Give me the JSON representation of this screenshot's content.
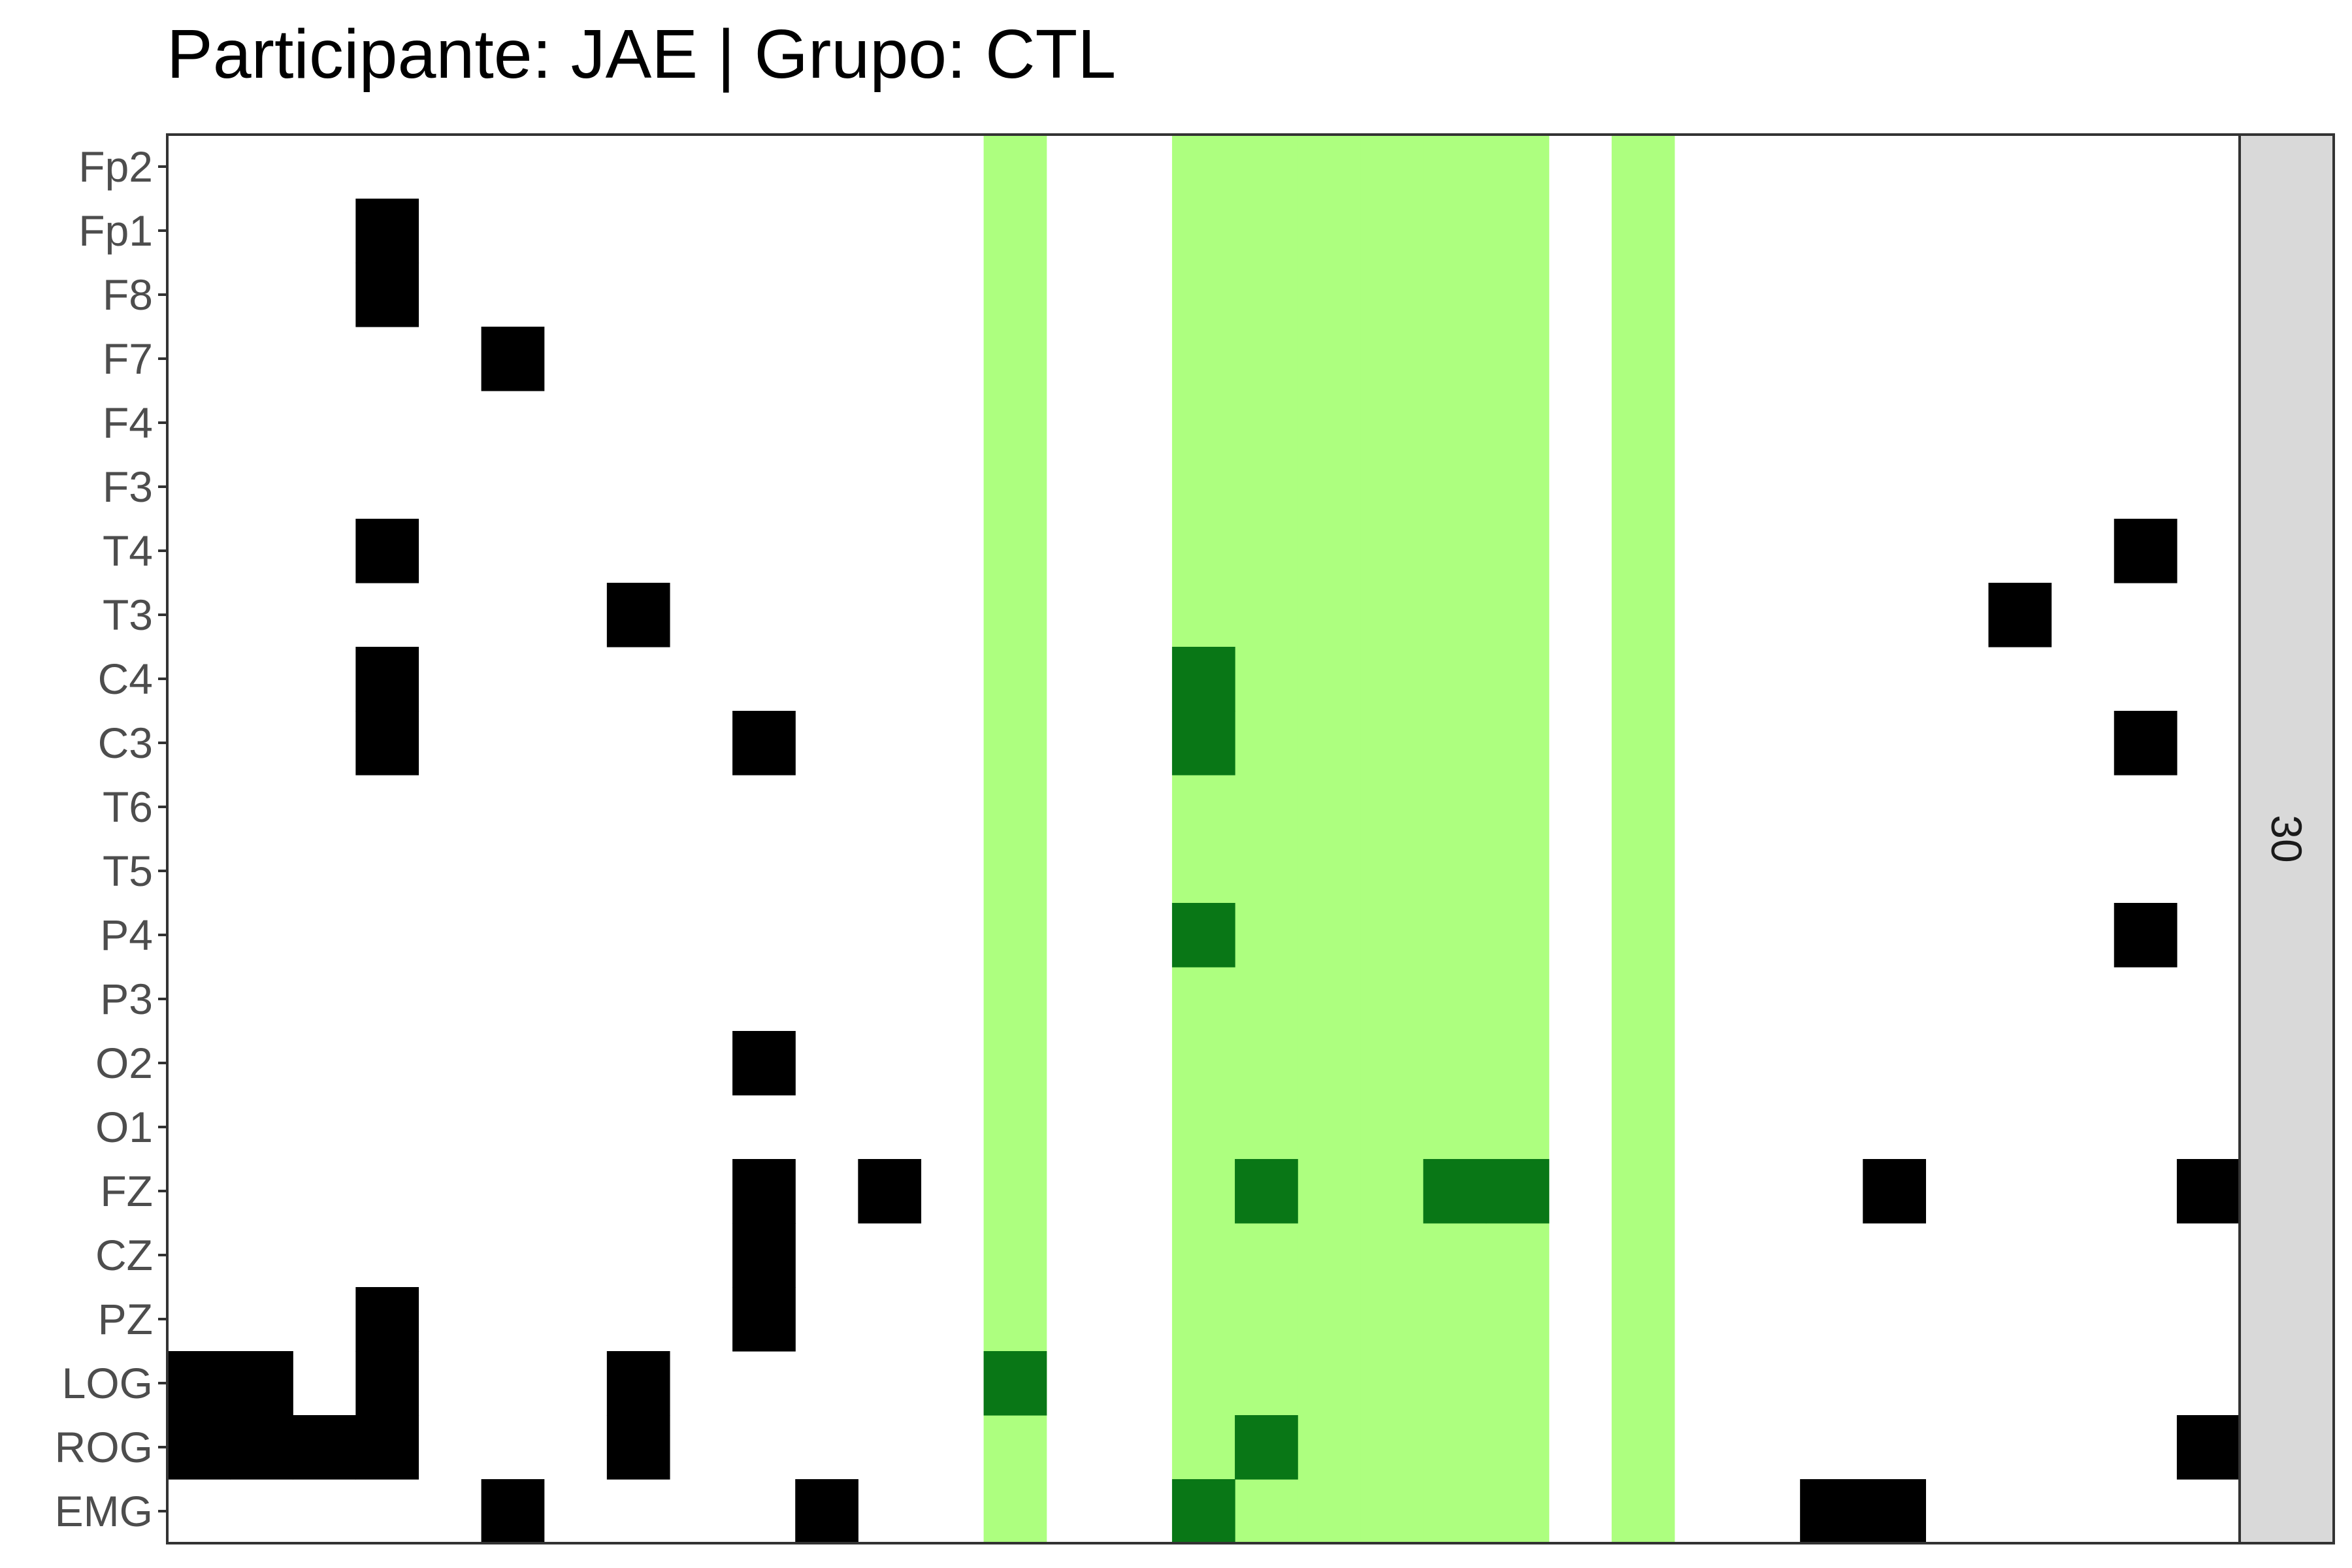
{
  "chart_data": {
    "type": "heatmap",
    "title": "Participante: JAE | Grupo: CTL",
    "xlabel": "",
    "ylabel": "",
    "facet_label": "30",
    "n_columns": 33,
    "rows": [
      "Fp2",
      "Fp1",
      "F8",
      "F7",
      "F4",
      "F3",
      "T4",
      "T3",
      "C4",
      "C3",
      "T6",
      "T5",
      "P4",
      "P3",
      "O2",
      "O1",
      "FZ",
      "CZ",
      "PZ",
      "LOG",
      "ROG",
      "EMG"
    ],
    "highlight_columns": [
      13,
      16,
      17,
      18,
      19,
      20,
      21,
      23
    ],
    "colors": {
      "background": "#ffffff",
      "highlight": "#adff7f",
      "on_highlight": "#097716",
      "on_normal": "#000000",
      "strip": "#d9d9d9",
      "panel_border": "#333333"
    },
    "cells": {
      "Fp1": [
        3
      ],
      "F8": [
        3
      ],
      "F7": [
        5
      ],
      "T4": [
        3,
        31
      ],
      "T3": [
        7,
        29
      ],
      "C4": [
        3,
        16
      ],
      "C3": [
        3,
        9,
        16,
        31
      ],
      "P4": [
        16,
        31
      ],
      "O2": [
        9
      ],
      "FZ": [
        9,
        11,
        17,
        20,
        21,
        27,
        32
      ],
      "CZ": [
        9
      ],
      "PZ": [
        3,
        9
      ],
      "LOG": [
        0,
        1,
        3,
        7,
        13
      ],
      "ROG": [
        0,
        1,
        2,
        3,
        7,
        17,
        32
      ],
      "EMG": [
        5,
        10,
        16,
        26,
        27
      ]
    }
  }
}
